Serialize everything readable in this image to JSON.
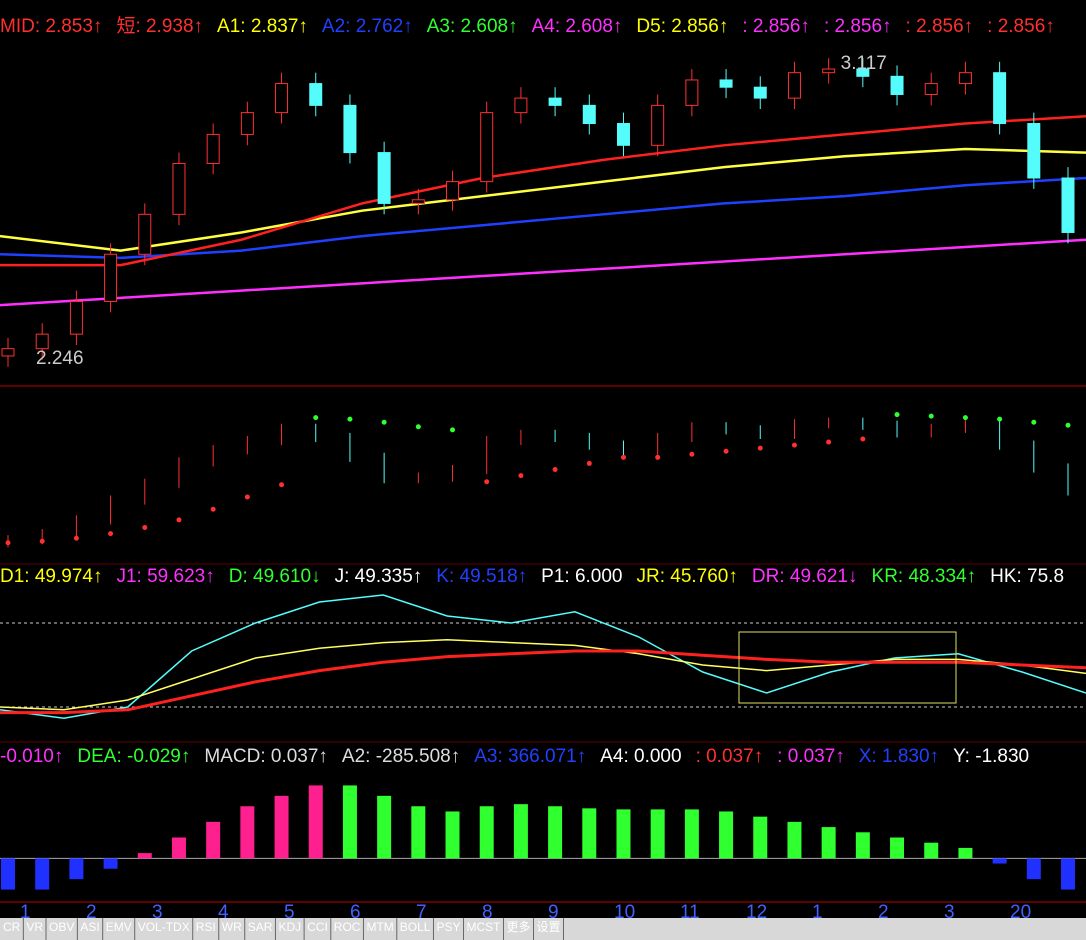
{
  "chart_data": {
    "type": "candlestick",
    "header": [
      {
        "text": "MID: 2.853↑",
        "color": "#ff3030"
      },
      {
        "text": "短: 2.938↑",
        "color": "#ff3030"
      },
      {
        "text": "A1: 2.837↑",
        "color": "#ffff00"
      },
      {
        "text": "A2: 2.762↑",
        "color": "#2040ff"
      },
      {
        "text": "A3: 2.608↑",
        "color": "#30ff30"
      },
      {
        "text": "A4: 2.608↑",
        "color": "#ff30ff"
      },
      {
        "text": "D5: 2.856↑",
        "color": "#ffff00"
      },
      {
        "text": ": 2.856↑",
        "color": "#ff30ff"
      },
      {
        "text": ": 2.856↑",
        "color": "#ff30ff"
      },
      {
        "text": ": 2.856↑",
        "color": "#ff3030"
      },
      {
        "text": ": 2.856↑",
        "color": "#ff3030"
      }
    ],
    "annotations": {
      "high": "3.117",
      "low": "2.246"
    },
    "ylim": [
      2.2,
      3.15
    ],
    "open": [
      2.28,
      2.3,
      2.34,
      2.43,
      2.56,
      2.67,
      2.81,
      2.89,
      2.95,
      3.03,
      2.97,
      2.84,
      2.7,
      2.71,
      2.76,
      2.95,
      2.99,
      2.97,
      2.92,
      2.86,
      2.97,
      3.04,
      3.02,
      2.99,
      3.06,
      3.07,
      3.05,
      3.0,
      3.03,
      3.06,
      2.92,
      2.77
    ],
    "close": [
      2.3,
      2.34,
      2.43,
      2.56,
      2.67,
      2.81,
      2.89,
      2.95,
      3.03,
      2.97,
      2.84,
      2.7,
      2.71,
      2.76,
      2.95,
      2.99,
      2.97,
      2.92,
      2.86,
      2.97,
      3.04,
      3.02,
      2.99,
      3.06,
      3.07,
      3.05,
      3.0,
      3.03,
      3.06,
      2.92,
      2.77,
      2.62
    ],
    "high": [
      2.33,
      2.37,
      2.46,
      2.59,
      2.7,
      2.84,
      2.92,
      2.98,
      3.06,
      3.06,
      3.0,
      2.87,
      2.74,
      2.79,
      2.98,
      3.02,
      3.02,
      3.0,
      2.95,
      3.0,
      3.07,
      3.07,
      3.05,
      3.09,
      3.1,
      3.1,
      3.08,
      3.06,
      3.09,
      3.09,
      2.95,
      2.8
    ],
    "low": [
      2.25,
      2.27,
      2.31,
      2.4,
      2.53,
      2.64,
      2.78,
      2.86,
      2.92,
      2.94,
      2.81,
      2.67,
      2.67,
      2.68,
      2.73,
      2.92,
      2.94,
      2.89,
      2.83,
      2.83,
      2.94,
      2.99,
      2.96,
      2.96,
      3.03,
      3.02,
      2.97,
      2.97,
      3.0,
      2.89,
      2.74,
      2.59
    ],
    "ma": [
      {
        "color": "#ff30ff",
        "values": [
          2.42,
          2.44,
          2.46,
          2.48,
          2.5,
          2.52,
          2.54,
          2.56,
          2.58,
          2.6
        ]
      },
      {
        "color": "#2040ff",
        "values": [
          2.56,
          2.55,
          2.57,
          2.61,
          2.64,
          2.67,
          2.7,
          2.72,
          2.75,
          2.77
        ]
      },
      {
        "color": "#ffff40",
        "values": [
          2.61,
          2.57,
          2.62,
          2.68,
          2.72,
          2.76,
          2.8,
          2.83,
          2.85,
          2.84
        ]
      },
      {
        "color": "#ff2020",
        "values": [
          2.53,
          2.53,
          2.6,
          2.7,
          2.77,
          2.82,
          2.86,
          2.89,
          2.92,
          2.94
        ]
      }
    ],
    "sar": [
      2.28,
      2.29,
      2.31,
      2.34,
      2.38,
      2.43,
      2.5,
      2.58,
      2.66,
      3.1,
      3.09,
      3.07,
      3.04,
      3.02,
      2.68,
      2.72,
      2.76,
      2.8,
      2.84,
      2.84,
      2.86,
      2.88,
      2.9,
      2.92,
      2.94,
      2.96,
      3.12,
      3.11,
      3.1,
      3.09,
      3.07,
      3.05
    ],
    "kdj_labels": [
      {
        "text": "D1: 49.974↑",
        "color": "#ffff00"
      },
      {
        "text": "J1: 59.623↑",
        "color": "#ff30ff"
      },
      {
        "text": "D: 49.610↓",
        "color": "#30ff30"
      },
      {
        "text": "J: 49.335↑",
        "color": "#ffffff"
      },
      {
        "text": "K: 49.518↑",
        "color": "#2040ff"
      },
      {
        "text": "P1: 6.000",
        "color": "#ffffff"
      },
      {
        "text": "JR: 45.760↑",
        "color": "#ffff00"
      },
      {
        "text": "DR: 49.621↓",
        "color": "#ff30ff"
      },
      {
        "text": "KR: 48.334↑",
        "color": "#30ff30"
      },
      {
        "text": "HK: 75.8",
        "color": "#ffffff"
      }
    ],
    "kdj_ylim": [
      0,
      100
    ],
    "kdj_levels": [
      80,
      20
    ],
    "kdj_j": [
      18,
      12,
      20,
      60,
      80,
      95,
      100,
      85,
      80,
      88,
      70,
      45,
      30,
      45,
      55,
      58,
      45,
      30
    ],
    "kdj_k": [
      20,
      18,
      25,
      40,
      55,
      62,
      66,
      68,
      66,
      64,
      58,
      50,
      46,
      50,
      54,
      54,
      50,
      44
    ],
    "kdj_d": [
      16,
      16,
      18,
      28,
      38,
      46,
      52,
      56,
      58,
      60,
      60,
      57,
      54,
      52,
      52,
      52,
      50,
      48
    ],
    "macd_labels": [
      {
        "text": "-0.010↑",
        "color": "#ff30ff"
      },
      {
        "text": "DEA: -0.029↑",
        "color": "#30ff30"
      },
      {
        "text": "MACD: 0.037↑",
        "color": "#dddddd"
      },
      {
        "text": "A2: -285.508↑",
        "color": "#dddddd"
      },
      {
        "text": "A3: 366.071↑",
        "color": "#2040ff"
      },
      {
        "text": "A4: 0.000",
        "color": "#ffffff"
      },
      {
        "text": ": 0.037↑",
        "color": "#ff3030"
      },
      {
        "text": ": 0.037↑",
        "color": "#ff30ff"
      },
      {
        "text": "X: 1.830↑",
        "color": "#2040ff"
      },
      {
        "text": "Y: -1.830",
        "color": "#ffffff"
      }
    ],
    "macd_ylim": [
      -0.04,
      0.08
    ],
    "macd": [
      -0.03,
      -0.03,
      -0.02,
      -0.01,
      0.005,
      0.02,
      0.035,
      0.05,
      0.06,
      0.07,
      0.07,
      0.06,
      0.05,
      0.045,
      0.05,
      0.052,
      0.05,
      0.048,
      0.047,
      0.047,
      0.047,
      0.045,
      0.04,
      0.035,
      0.03,
      0.025,
      0.02,
      0.015,
      0.01,
      -0.005,
      -0.02,
      -0.03
    ],
    "months": [
      "1",
      "2",
      "3",
      "4",
      "5",
      "6",
      "7",
      "8",
      "9",
      "10",
      "11",
      "12",
      "1",
      "2",
      "3",
      "20"
    ],
    "tabs": [
      "CR",
      "VR",
      "OBV",
      "ASI",
      "EMV",
      "VOL-TDX",
      "RSI",
      "WR",
      "SAR",
      "KDJ",
      "CCI",
      "ROC",
      "MTM",
      "BOLL",
      "PSY",
      "MCST",
      "更多",
      "设置"
    ]
  }
}
